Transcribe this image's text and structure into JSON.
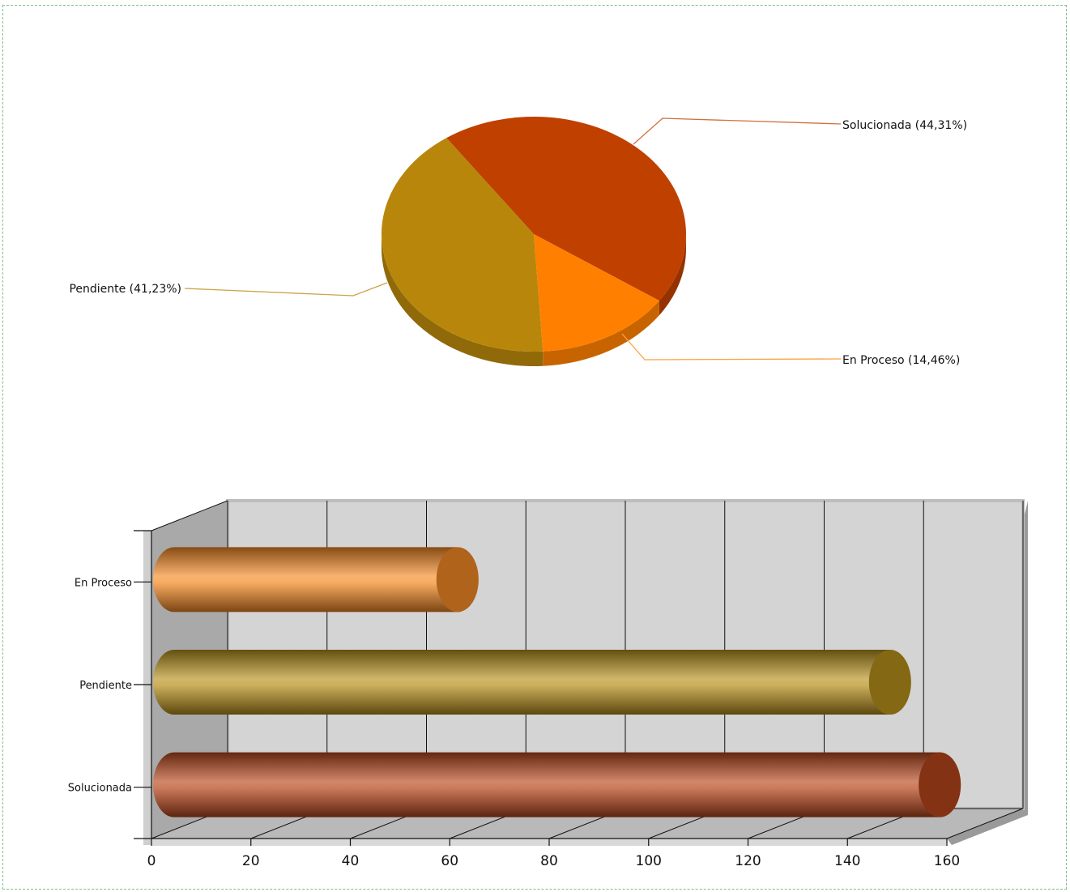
{
  "chart_data": [
    {
      "type": "pie",
      "categories": [
        "Solucionada",
        "En Proceso",
        "Pendiente"
      ],
      "values": [
        44.31,
        14.46,
        41.23
      ],
      "labels": [
        "Solucionada (44,31%)",
        "En Proceso (14,46%)",
        "Pendiente (41,23%)"
      ],
      "colors": [
        "#c04000",
        "#ff8000",
        "#b8860b"
      ],
      "style": "3d",
      "title": ""
    },
    {
      "type": "bar",
      "orientation": "horizontal",
      "style": "3d-cylinder",
      "categories": [
        "En Proceso",
        "Pendiente",
        "Solucionada"
      ],
      "values": [
        57,
        144,
        154
      ],
      "colors": [
        "#f58a24",
        "#b8901c",
        "#b8461c"
      ],
      "xlim": [
        0,
        160
      ],
      "xticks": [
        "0",
        "20",
        "40",
        "60",
        "80",
        "100",
        "120",
        "140",
        "160"
      ],
      "grid": true,
      "title": "",
      "xlabel": "",
      "ylabel": ""
    }
  ]
}
